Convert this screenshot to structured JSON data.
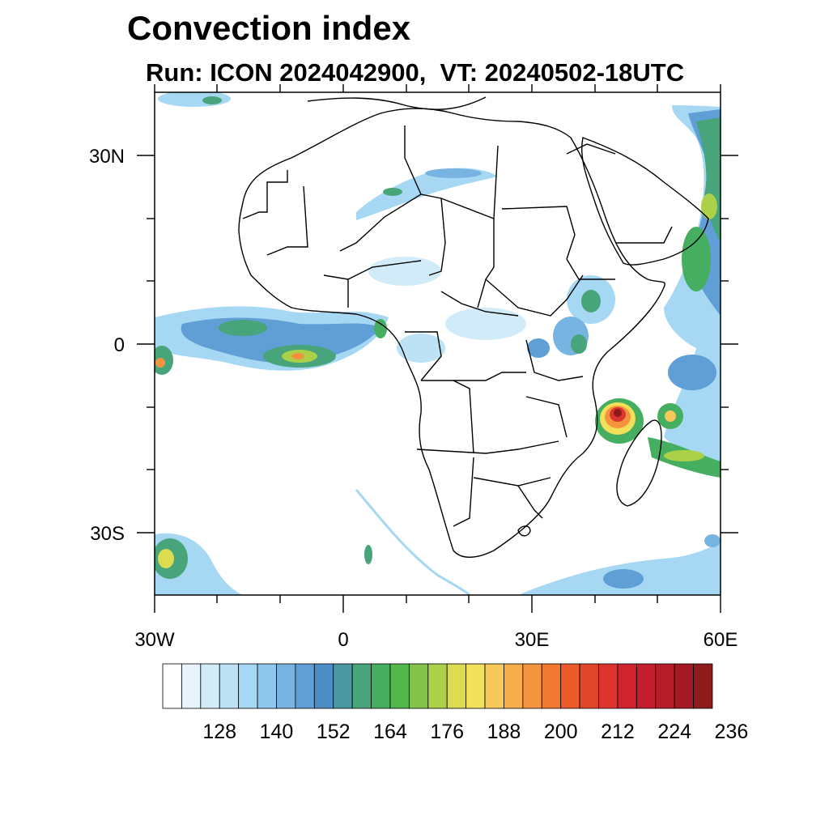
{
  "title": "Convection index",
  "subtitle": "Run: ICON 2024042900,  VT: 20240502-18UTC",
  "map": {
    "region": "Africa",
    "longitude_range": [
      -30,
      60
    ],
    "latitude_range": [
      -40,
      40
    ],
    "x_ticks": [
      {
        "lon": -30,
        "label": "30W"
      },
      {
        "lon": 0,
        "label": "0"
      },
      {
        "lon": 30,
        "label": "30E"
      },
      {
        "lon": 60,
        "label": "60E"
      }
    ],
    "y_ticks": [
      {
        "lat": 30,
        "label": "30N"
      },
      {
        "lat": 0,
        "label": "0"
      },
      {
        "lat": -30,
        "label": "30S"
      }
    ]
  },
  "colorbar": {
    "colors": [
      "#ffffff",
      "#e8f4fc",
      "#d2ebf8",
      "#bde2f6",
      "#a6d8f4",
      "#8fc8ec",
      "#78b4e2",
      "#5f9fd6",
      "#4d8dc6",
      "#4a98a0",
      "#48a47a",
      "#46ae60",
      "#52b84c",
      "#84c24c",
      "#acd04a",
      "#dcdc50",
      "#f2e05a",
      "#f7c85a",
      "#f6ae4a",
      "#f4943c",
      "#f07830",
      "#ea5a2a",
      "#e2462a",
      "#dc342e",
      "#cf2430",
      "#c41e2e",
      "#b61c2a",
      "#a41a24",
      "#8e1a1c"
    ],
    "labels": [
      "128",
      "140",
      "152",
      "164",
      "176",
      "188",
      "200",
      "212",
      "224",
      "236"
    ]
  }
}
